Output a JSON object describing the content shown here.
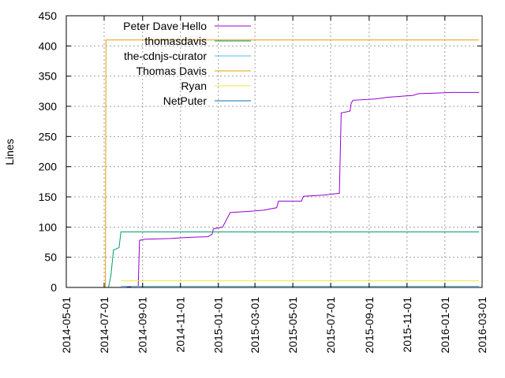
{
  "chart_data": {
    "type": "line",
    "title": "",
    "xlabel": "",
    "ylabel": "Lines",
    "ylim": [
      0,
      450
    ],
    "yticks": [
      0,
      50,
      100,
      150,
      200,
      250,
      300,
      350,
      400,
      450
    ],
    "xlim": [
      "2014-05-01",
      "2016-03-01"
    ],
    "xticks": [
      "2014-05-01",
      "2014-07-01",
      "2014-09-01",
      "2014-11-01",
      "2015-01-01",
      "2015-03-01",
      "2015-05-01",
      "2015-07-01",
      "2015-09-01",
      "2015-11-01",
      "2016-01-01",
      "2016-03-01"
    ],
    "grid": true,
    "legend_position": "top-left",
    "series": [
      {
        "name": "Peter Dave Hello",
        "color": "#9400d3",
        "points": [
          [
            "2014-07-10",
            0
          ],
          [
            "2014-08-05",
            0
          ],
          [
            "2014-08-15",
            2
          ],
          [
            "2014-08-25",
            2
          ],
          [
            "2014-08-27",
            78
          ],
          [
            "2014-09-05",
            80
          ],
          [
            "2014-10-15",
            81
          ],
          [
            "2014-11-15",
            83
          ],
          [
            "2014-12-15",
            84
          ],
          [
            "2014-12-22",
            88
          ],
          [
            "2014-12-24",
            97
          ],
          [
            "2015-01-08",
            100
          ],
          [
            "2015-01-20",
            124
          ],
          [
            "2015-02-20",
            126
          ],
          [
            "2015-03-15",
            128
          ],
          [
            "2015-04-05",
            132
          ],
          [
            "2015-04-08",
            143
          ],
          [
            "2015-05-15",
            143
          ],
          [
            "2015-05-18",
            151
          ],
          [
            "2015-06-20",
            153
          ],
          [
            "2015-07-15",
            156
          ],
          [
            "2015-07-18",
            289
          ],
          [
            "2015-08-01",
            292
          ],
          [
            "2015-08-03",
            305
          ],
          [
            "2015-08-06",
            310
          ],
          [
            "2015-09-10",
            312
          ],
          [
            "2015-10-01",
            315
          ],
          [
            "2015-11-10",
            318
          ],
          [
            "2015-11-20",
            321
          ],
          [
            "2015-12-20",
            322
          ],
          [
            "2016-01-10",
            323
          ],
          [
            "2016-02-25",
            323
          ]
        ]
      },
      {
        "name": "thomasdavis",
        "color": "#009e73",
        "points": [
          [
            "2014-07-08",
            0
          ],
          [
            "2014-07-12",
            20
          ],
          [
            "2014-07-16",
            62
          ],
          [
            "2014-07-25",
            66
          ],
          [
            "2014-07-28",
            92
          ],
          [
            "2016-02-25",
            92
          ]
        ]
      },
      {
        "name": "the-cdnjs-curator",
        "color": "#56b4e9",
        "points": [
          [
            "2014-07-28",
            2
          ],
          [
            "2016-02-25",
            2
          ]
        ]
      },
      {
        "name": "Thomas Davis",
        "color": "#e69f00",
        "points": [
          [
            "2014-07-03",
            0
          ],
          [
            "2014-07-04",
            410
          ],
          [
            "2016-02-25",
            410
          ]
        ]
      },
      {
        "name": "Ryan",
        "color": "#f0e442",
        "points": [
          [
            "2014-07-28",
            11
          ],
          [
            "2016-02-25",
            11
          ]
        ]
      },
      {
        "name": "NetPuter",
        "color": "#0072b2",
        "points": [
          [
            "2014-07-10",
            0
          ],
          [
            "2016-02-25",
            0
          ]
        ]
      }
    ]
  }
}
